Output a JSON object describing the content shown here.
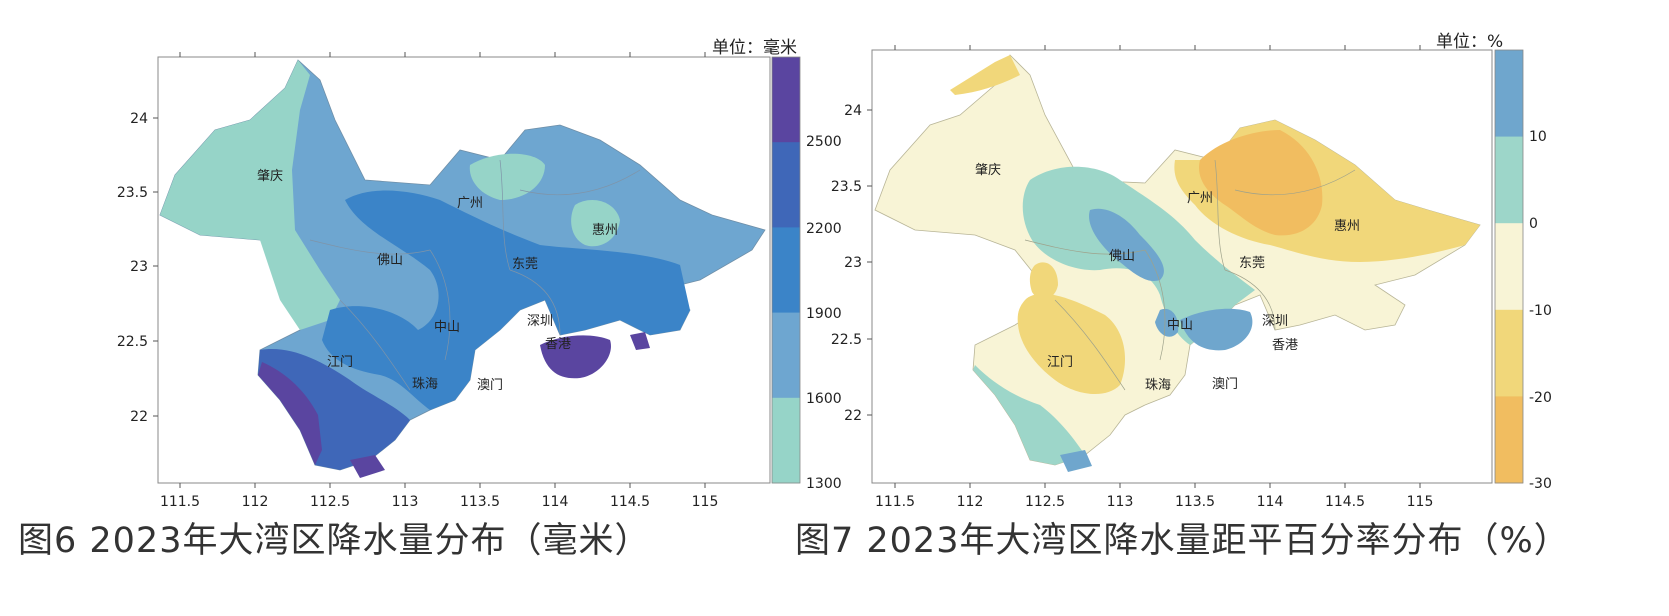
{
  "maps": [
    {
      "unit_label": "单位：毫米",
      "caption": "图6   2023年大湾区降水量分布（毫米）",
      "x_ticks": [
        "111.5",
        "112",
        "112.5",
        "113",
        "113.5",
        "114",
        "114.5",
        "115"
      ],
      "y_ticks": [
        "24",
        "23.5",
        "23",
        "22.5",
        "22"
      ],
      "cities": [
        "肇庆",
        "广州",
        "佛山",
        "东莞",
        "惠州",
        "中山",
        "深圳",
        "香港",
        "江门",
        "珠海",
        "澳门"
      ],
      "legend": {
        "ticks": [
          "2500",
          "2200",
          "1900",
          "1600",
          "1300"
        ],
        "colors": [
          "#5a45a0",
          "#3f67b8",
          "#3b84c8",
          "#6ea6d0",
          "#96d4c8"
        ]
      }
    },
    {
      "unit_label": "单位：%",
      "caption": "图7 2023年大湾区降水量距平百分率分布（%）",
      "x_ticks": [
        "111.5",
        "112",
        "112.5",
        "113",
        "113.5",
        "114",
        "114.5",
        "115"
      ],
      "y_ticks": [
        "24",
        "23.5",
        "23",
        "22.5",
        "22"
      ],
      "cities": [
        "肇庆",
        "广州",
        "佛山",
        "东莞",
        "惠州",
        "中山",
        "深圳",
        "香港",
        "江门",
        "珠海",
        "澳门"
      ],
      "legend": {
        "ticks": [
          "10",
          "0",
          "-10",
          "-20",
          "-30"
        ],
        "colors": [
          "#6fa6cd",
          "#9dd6c9",
          "#f8f4d6",
          "#f1d77a",
          "#f1bd60"
        ]
      }
    }
  ]
}
